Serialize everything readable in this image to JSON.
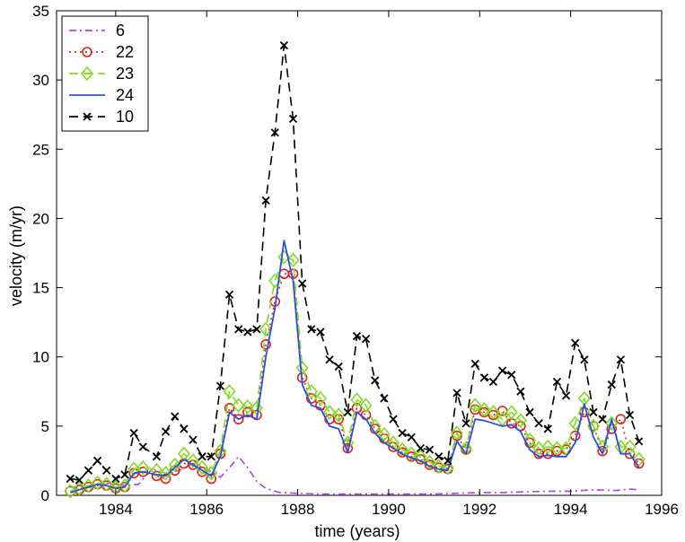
{
  "chart_data": {
    "type": "line",
    "title": "",
    "xlabel": "time (years)",
    "ylabel": "velocity (m/yr)",
    "xlim": [
      1982.7,
      1996
    ],
    "ylim": [
      0,
      35
    ],
    "xticks": [
      1984,
      1986,
      1988,
      1990,
      1992,
      1994,
      1996
    ],
    "yticks": [
      0,
      5,
      10,
      15,
      20,
      25,
      30,
      35
    ],
    "legend_position": "top-left",
    "series": [
      {
        "name": "6",
        "color": "#b040e0",
        "style": "dash-dot",
        "marker": "none",
        "x": [
          1983.0,
          1983.3,
          1983.6,
          1983.9,
          1984.2,
          1984.5,
          1984.8,
          1985.1,
          1985.4,
          1985.7,
          1986.0,
          1986.3,
          1986.5,
          1986.7,
          1986.9,
          1987.1,
          1987.3,
          1987.6,
          1988.0,
          1988.5,
          1989.0,
          1989.5,
          1990.0,
          1990.5,
          1991.0,
          1991.5,
          1992.0,
          1992.5,
          1993.0,
          1993.5,
          1994.0,
          1994.5,
          1995.0,
          1995.3,
          1995.5
        ],
        "y": [
          0.6,
          0.5,
          0.7,
          0.9,
          0.7,
          0.8,
          1.9,
          1.6,
          1.8,
          2.3,
          1.9,
          1.3,
          2.0,
          2.8,
          2.0,
          1.0,
          0.5,
          0.2,
          0.15,
          0.1,
          0.1,
          0.1,
          0.1,
          0.1,
          0.1,
          0.15,
          0.2,
          0.2,
          0.25,
          0.3,
          0.3,
          0.4,
          0.35,
          0.45,
          0.4
        ]
      },
      {
        "name": "22",
        "color": "#e02020",
        "style": "dotted",
        "marker": "circle",
        "x": [
          1983.0,
          1983.2,
          1983.4,
          1983.6,
          1983.8,
          1984.0,
          1984.2,
          1984.4,
          1984.6,
          1984.9,
          1985.1,
          1985.3,
          1985.5,
          1985.7,
          1985.9,
          1986.1,
          1986.3,
          1986.5,
          1986.7,
          1986.9,
          1987.1,
          1987.3,
          1987.5,
          1987.7,
          1987.9,
          1988.1,
          1988.3,
          1988.5,
          1988.7,
          1988.9,
          1989.1,
          1989.3,
          1989.5,
          1989.7,
          1989.9,
          1990.1,
          1990.3,
          1990.5,
          1990.7,
          1990.9,
          1991.1,
          1991.3,
          1991.5,
          1991.7,
          1991.9,
          1992.1,
          1992.3,
          1992.5,
          1992.7,
          1992.9,
          1993.1,
          1993.3,
          1993.5,
          1993.7,
          1993.9,
          1994.1,
          1994.3,
          1994.5,
          1994.7,
          1994.9,
          1995.1,
          1995.3,
          1995.5
        ],
        "y": [
          0.3,
          0.4,
          0.6,
          0.8,
          0.7,
          0.5,
          0.6,
          1.6,
          1.7,
          1.4,
          1.2,
          1.8,
          2.3,
          2.2,
          1.7,
          1.2,
          3.0,
          6.3,
          5.5,
          6.0,
          5.8,
          10.9,
          14.0,
          16.0,
          16.0,
          8.5,
          7.0,
          6.5,
          5.5,
          5.5,
          3.4,
          6.3,
          5.8,
          4.8,
          4.1,
          3.5,
          3.1,
          2.8,
          2.6,
          2.2,
          2.0,
          1.9,
          4.3,
          3.3,
          6.2,
          6.0,
          5.8,
          6.1,
          5.2,
          5.0,
          3.8,
          3.0,
          3.0,
          3.2,
          3.3,
          4.3,
          6.0,
          5.0,
          3.2,
          4.8,
          5.5,
          3.0,
          2.3
        ]
      },
      {
        "name": "23",
        "color": "#7fdc20",
        "style": "dashed",
        "marker": "diamond",
        "x": [
          1983.0,
          1983.2,
          1983.4,
          1983.6,
          1983.8,
          1984.0,
          1984.2,
          1984.4,
          1984.6,
          1984.9,
          1985.1,
          1985.3,
          1985.5,
          1985.7,
          1985.9,
          1986.1,
          1986.3,
          1986.5,
          1986.7,
          1986.9,
          1987.1,
          1987.3,
          1987.5,
          1987.7,
          1987.9,
          1988.1,
          1988.3,
          1988.5,
          1988.7,
          1988.9,
          1989.1,
          1989.3,
          1989.5,
          1989.7,
          1989.9,
          1990.1,
          1990.3,
          1990.5,
          1990.7,
          1990.9,
          1991.1,
          1991.3,
          1991.5,
          1991.7,
          1991.9,
          1992.1,
          1992.3,
          1992.5,
          1992.7,
          1992.9,
          1993.1,
          1993.3,
          1993.5,
          1993.7,
          1993.9,
          1994.1,
          1994.3,
          1994.5,
          1994.7,
          1994.9,
          1995.1,
          1995.3,
          1995.5
        ],
        "y": [
          0.3,
          0.5,
          0.7,
          0.9,
          0.8,
          0.6,
          0.7,
          1.9,
          2.0,
          1.8,
          1.6,
          2.2,
          3.0,
          2.5,
          2.0,
          1.6,
          3.2,
          7.5,
          6.5,
          6.4,
          6.3,
          12.0,
          15.5,
          17.2,
          17.0,
          9.2,
          7.5,
          7.0,
          6.0,
          5.8,
          3.8,
          6.9,
          6.5,
          5.0,
          4.4,
          3.8,
          3.3,
          3.0,
          2.8,
          2.4,
          2.1,
          2.0,
          4.5,
          3.4,
          6.5,
          6.2,
          6.0,
          5.5,
          6.0,
          5.4,
          4.0,
          3.4,
          3.5,
          3.4,
          3.4,
          5.2,
          7.0,
          5.0,
          3.5,
          5.2,
          3.5,
          3.5,
          2.6
        ]
      },
      {
        "name": "24",
        "color": "#2a50e0",
        "style": "solid",
        "marker": "none",
        "x": [
          1983.0,
          1983.2,
          1983.4,
          1983.6,
          1983.8,
          1984.0,
          1984.2,
          1984.4,
          1984.6,
          1984.9,
          1985.1,
          1985.3,
          1985.5,
          1985.7,
          1985.9,
          1986.1,
          1986.3,
          1986.5,
          1986.7,
          1986.9,
          1987.1,
          1987.3,
          1987.5,
          1987.7,
          1987.9,
          1988.1,
          1988.3,
          1988.5,
          1988.7,
          1988.9,
          1989.1,
          1989.3,
          1989.5,
          1989.7,
          1989.9,
          1990.1,
          1990.3,
          1990.5,
          1990.7,
          1990.9,
          1991.1,
          1991.3,
          1991.5,
          1991.7,
          1991.9,
          1992.1,
          1992.3,
          1992.5,
          1992.7,
          1992.9,
          1993.1,
          1993.3,
          1993.5,
          1993.7,
          1993.9,
          1994.1,
          1994.3,
          1994.5,
          1994.7,
          1994.9,
          1995.1,
          1995.3,
          1995.5
        ],
        "y": [
          0.2,
          0.4,
          0.6,
          0.8,
          0.7,
          0.5,
          0.6,
          1.6,
          1.7,
          1.5,
          1.4,
          2.0,
          2.6,
          2.2,
          1.8,
          1.4,
          2.8,
          6.0,
          5.5,
          5.8,
          5.5,
          10.0,
          13.5,
          18.4,
          15.5,
          8.0,
          6.5,
          6.3,
          5.0,
          4.8,
          3.1,
          6.0,
          5.5,
          4.5,
          3.8,
          3.4,
          3.0,
          2.7,
          2.5,
          2.1,
          1.9,
          1.8,
          3.9,
          3.0,
          5.5,
          5.4,
          5.2,
          5.0,
          5.1,
          4.6,
          3.3,
          2.8,
          2.9,
          2.8,
          2.8,
          3.8,
          6.6,
          4.2,
          3.0,
          5.5,
          3.0,
          3.0,
          2.0
        ]
      },
      {
        "name": "10",
        "color": "#000000",
        "style": "dashed",
        "marker": "x",
        "x": [
          1983.0,
          1983.2,
          1983.4,
          1983.6,
          1983.8,
          1984.0,
          1984.2,
          1984.4,
          1984.6,
          1984.9,
          1985.1,
          1985.3,
          1985.5,
          1985.7,
          1985.9,
          1986.1,
          1986.3,
          1986.5,
          1986.7,
          1986.9,
          1987.1,
          1987.3,
          1987.5,
          1987.7,
          1987.9,
          1988.1,
          1988.3,
          1988.5,
          1988.7,
          1988.9,
          1989.1,
          1989.3,
          1989.5,
          1989.7,
          1989.9,
          1990.1,
          1990.3,
          1990.5,
          1990.7,
          1990.9,
          1991.1,
          1991.3,
          1991.5,
          1991.7,
          1991.9,
          1992.1,
          1992.3,
          1992.5,
          1992.7,
          1992.9,
          1993.1,
          1993.3,
          1993.5,
          1993.7,
          1993.9,
          1994.1,
          1994.3,
          1994.5,
          1994.7,
          1994.9,
          1995.1,
          1995.3,
          1995.5
        ],
        "y": [
          1.2,
          1.1,
          1.8,
          2.5,
          1.8,
          1.2,
          1.5,
          4.5,
          3.5,
          2.8,
          4.6,
          5.7,
          4.8,
          4.0,
          2.8,
          2.8,
          7.9,
          14.5,
          12.0,
          11.8,
          12.0,
          21.3,
          26.2,
          32.5,
          27.2,
          15.3,
          12.0,
          11.8,
          9.8,
          9.3,
          6.0,
          11.5,
          11.3,
          8.3,
          7.0,
          5.5,
          4.5,
          4.2,
          3.4,
          3.3,
          2.8,
          2.5,
          7.4,
          5.2,
          9.5,
          8.5,
          8.2,
          9.0,
          8.7,
          7.5,
          6.0,
          5.2,
          4.8,
          8.2,
          7.2,
          11.0,
          9.8,
          6.0,
          5.5,
          8.0,
          9.8,
          5.8,
          3.9
        ]
      }
    ]
  }
}
